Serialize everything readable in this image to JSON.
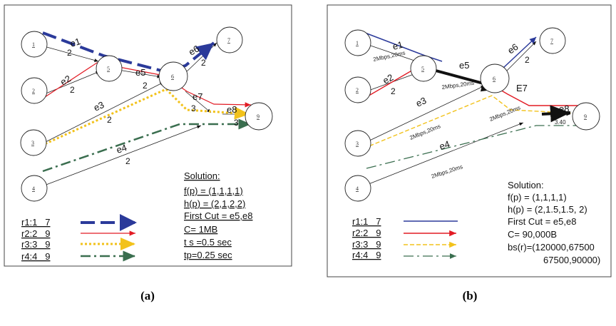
{
  "captions": [
    "(a)",
    "(b)"
  ],
  "panel_a": {
    "nodes": [
      "1",
      "2",
      "3",
      "4",
      "5",
      "6",
      "7",
      "9"
    ],
    "edge_labels": [
      "e1",
      "e2",
      "e3",
      "e4",
      "e5",
      "e6",
      "e7",
      "e8"
    ],
    "weights": [
      "2",
      "2",
      "2",
      "2",
      "2",
      "2",
      "3",
      "3"
    ],
    "solution": {
      "title": "Solution:",
      "lines": [
        "f(p) = (1,1,1,1)",
        "h(p)  = (2,1,2,2)",
        "First Cut = e5,e8",
        "C= 1MB",
        "t s =0.5 sec",
        "tp=0.25 sec"
      ]
    },
    "legend": [
      {
        "label": "r1:1   7",
        "color": "#2b3a9a"
      },
      {
        "label": "r2:2   9",
        "color": "#e21b24"
      },
      {
        "label": "r3:3   9",
        "color": "#f2c21b"
      },
      {
        "label": "r4:4   9",
        "color": "#3a6e4f"
      }
    ]
  },
  "panel_b": {
    "nodes": [
      "1",
      "2",
      "3",
      "4",
      "5",
      "6",
      "7",
      "9"
    ],
    "edge_labels": [
      "e1",
      "e2",
      "e3",
      "e4",
      "e5",
      "e6",
      "E7",
      "e8"
    ],
    "weights": [
      "2",
      "2"
    ],
    "bandwidth_labels": [
      "2Mbps,20ms",
      "2Mbps,20ms",
      "2Mbps,20ms",
      "2Mbps,20ms",
      "2Mbps,20ms"
    ],
    "edge_value": "3.40",
    "solution": {
      "title": "Solution:",
      "lines": [
        "f(p) = (1,1,1,1)",
        "h(p)  = (2,1.5,1.5, 2)",
        "First Cut = e5,e8",
        "C= 90,000B",
        "bs(r)=(120000,67500",
        "67500,90000)"
      ]
    },
    "legend": [
      {
        "label": "r1:1   7",
        "color": "#2b3a9a"
      },
      {
        "label": "r2:2   9",
        "color": "#e21b24"
      },
      {
        "label": "r3:3   9",
        "color": "#f2c21b"
      },
      {
        "label": "r4:4   9",
        "color": "#3a6e4f"
      }
    ]
  }
}
